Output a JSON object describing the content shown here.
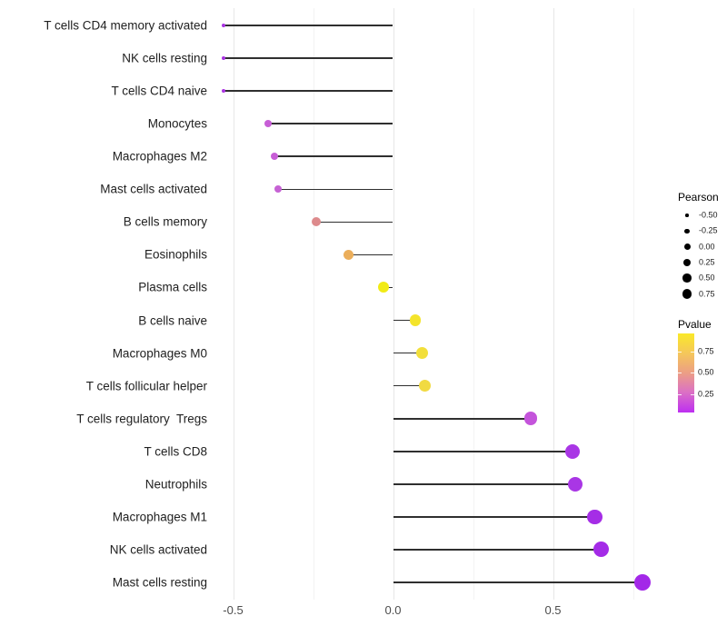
{
  "chart_data": {
    "type": "lollipop",
    "title": "",
    "xlabel": "",
    "ylabel": "",
    "x_axis": {
      "tick_labels": [
        "-0.5",
        "0.0",
        "0.5"
      ],
      "tick_values": [
        -0.5,
        0.0,
        0.5
      ],
      "minor_values": [
        -0.25,
        0.25,
        0.75
      ],
      "range": [
        -0.6,
        0.85
      ]
    },
    "grid": "vertical-only",
    "stem_color": "#2f2f2f",
    "points": [
      {
        "label": "T cells CD4 memory activated",
        "pearson": -0.53,
        "dot_color": "#A932E2",
        "dot_size": 4.5
      },
      {
        "label": "NK cells resting",
        "pearson": -0.53,
        "dot_color": "#A932E2",
        "dot_size": 4.5
      },
      {
        "label": "T cells CD4 naive",
        "pearson": -0.53,
        "dot_color": "#AB34E2",
        "dot_size": 4.5
      },
      {
        "label": "Monocytes",
        "pearson": -0.39,
        "dot_color": "#C75ED6",
        "dot_size": 8
      },
      {
        "label": "Macrophages M2",
        "pearson": -0.37,
        "dot_color": "#C75ED6",
        "dot_size": 8
      },
      {
        "label": "Mast cells activated",
        "pearson": -0.36,
        "dot_color": "#C662D4",
        "dot_size": 8
      },
      {
        "label": "B cells memory",
        "pearson": -0.24,
        "dot_color": "#DD8A8C",
        "dot_size": 10
      },
      {
        "label": "Eosinophils",
        "pearson": -0.14,
        "dot_color": "#EBAE5B",
        "dot_size": 11
      },
      {
        "label": "Plasma cells",
        "pearson": -0.03,
        "dot_color": "#F1EB16",
        "dot_size": 12
      },
      {
        "label": "B cells naive",
        "pearson": 0.07,
        "dot_color": "#F4E42B",
        "dot_size": 12.5
      },
      {
        "label": "Macrophages M0",
        "pearson": 0.09,
        "dot_color": "#F2DF3B",
        "dot_size": 13
      },
      {
        "label": "T cells follicular helper",
        "pearson": 0.1,
        "dot_color": "#F1DA42",
        "dot_size": 13
      },
      {
        "label": "T cells regulatory  Tregs",
        "pearson": 0.43,
        "dot_color": "#C454DB",
        "dot_size": 14.5
      },
      {
        "label": "T cells CD8",
        "pearson": 0.56,
        "dot_color": "#A936E5",
        "dot_size": 16
      },
      {
        "label": "Neutrophils",
        "pearson": 0.57,
        "dot_color": "#A936E5",
        "dot_size": 16
      },
      {
        "label": "Macrophages M1",
        "pearson": 0.63,
        "dot_color": "#A52DE6",
        "dot_size": 16.5
      },
      {
        "label": "NK cells activated",
        "pearson": 0.65,
        "dot_color": "#A42BE7",
        "dot_size": 17
      },
      {
        "label": "Mast cells resting",
        "pearson": 0.78,
        "dot_color": "#A328E8",
        "dot_size": 18
      }
    ],
    "legends": {
      "size": {
        "title": "Pearson",
        "entries": [
          {
            "label": "-0.50",
            "diameter": 3.5
          },
          {
            "label": "-0.25",
            "diameter": 5.5
          },
          {
            "label": "0.00",
            "diameter": 7
          },
          {
            "label": "0.25",
            "diameter": 8.5
          },
          {
            "label": "0.50",
            "diameter": 9.5
          },
          {
            "label": "0.75",
            "diameter": 10.5
          }
        ]
      },
      "color": {
        "title": "Pvalue",
        "tick_labels": [
          "0.75",
          "0.50",
          "0.25"
        ],
        "gradient_top_to_bottom": [
          "#FAE929",
          "#F5C75A",
          "#EC9E85",
          "#DB6FC6",
          "#BD2EF1"
        ]
      }
    },
    "colors": {
      "grid_major": "#E7E7E7",
      "grid_minor": "#F3F3F3",
      "axis_text": "#4D4D4D"
    }
  }
}
